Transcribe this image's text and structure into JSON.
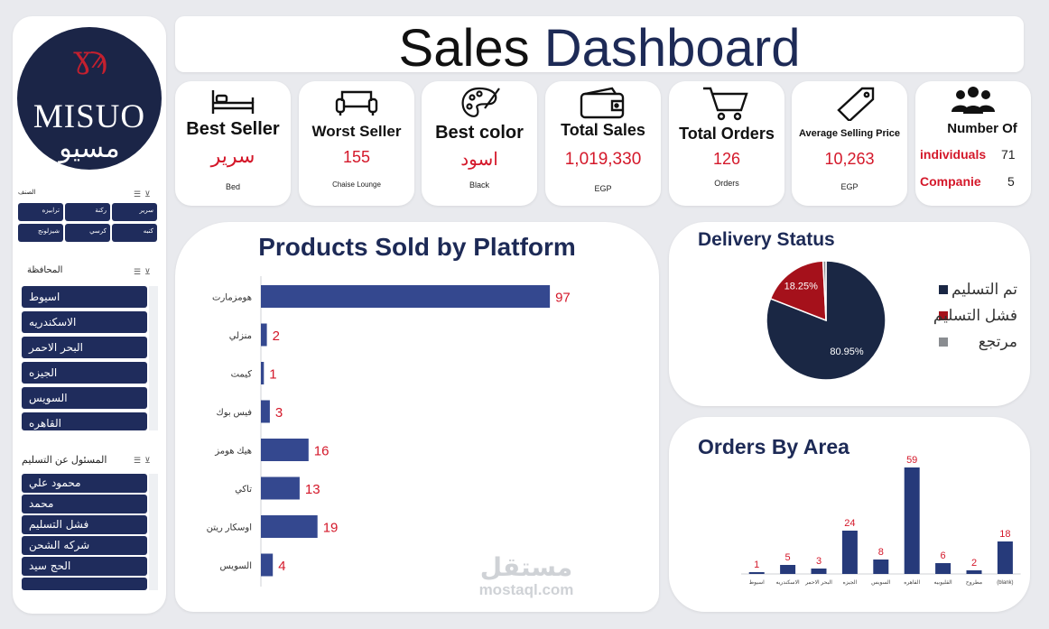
{
  "header": {
    "title_part1": "Sales",
    "title_part2": "Dashboard"
  },
  "logo": {
    "ornament": "ɣϡ",
    "brand": "MISUO",
    "arabic": "مسيو"
  },
  "slicers": {
    "category": {
      "title": "الصنف",
      "items": [
        "سرير",
        "ركنة",
        "ترابيزه",
        "كنبه",
        "كرسي",
        "شيزلونج"
      ]
    },
    "governorate": {
      "title": "المحافظة",
      "items": [
        "اسيوط",
        "الاسكندريه",
        "البحر الاحمر",
        "الجيزه",
        "السويس",
        "القاهره"
      ]
    },
    "delivery_agent": {
      "title": "المسئول عن التسليم",
      "items": [
        "محمود علي",
        "محمد",
        "فشل التسليم",
        "شركه الشحن",
        "الحج سيد"
      ]
    }
  },
  "kpis": {
    "best_seller": {
      "label": "Best Seller",
      "value": "سرير",
      "sub": "Bed",
      "icon": "bed-icon"
    },
    "worst_seller": {
      "label": "Worst Seller",
      "value": "155",
      "sub": "Chaise Lounge",
      "icon": "sofa-icon"
    },
    "best_color": {
      "label": "Best color",
      "value": "اسود",
      "sub": "Black",
      "icon": "palette-icon"
    },
    "total_sales": {
      "label": "Total Sales",
      "value": "1,019,330",
      "sub": "EGP",
      "icon": "wallet-icon"
    },
    "total_orders": {
      "label": "Total Orders",
      "value": "126",
      "sub": "Orders",
      "icon": "cart-icon"
    },
    "avg_price": {
      "label": "Average Selling Price",
      "value": "10,263",
      "sub": "EGP",
      "icon": "tag-icon"
    },
    "customers": {
      "label": "Number Of",
      "individuals_label": "individuals",
      "individuals_value": "71",
      "companies_label": "Companie",
      "companies_value": "5",
      "icon": "people-icon"
    }
  },
  "colors": {
    "navy": "#1f2c5c",
    "bar": "#34488f",
    "red": "#d4182a",
    "darkred": "#a5111b",
    "gray": "#8a8d91"
  },
  "chart_data": [
    {
      "type": "bar",
      "orientation": "horizontal",
      "title": "Products Sold by Platform",
      "categories": [
        "هومزمارت",
        "منزلي",
        "كيمت",
        "فيس بوك",
        "هيك هومز",
        "تاكي",
        "اوسكار ريتن",
        "السويس"
      ],
      "values": [
        97,
        2,
        1,
        3,
        16,
        13,
        19,
        4
      ],
      "xlim": [
        0,
        100
      ],
      "data_labels": true
    },
    {
      "type": "pie",
      "title": "Delivery Status",
      "labels": [
        "تم التسليم",
        "فشل التسليم",
        "مرتجع"
      ],
      "values": [
        80.95,
        18.25,
        0.8
      ],
      "display_labels": [
        "80.95%",
        "18.25%",
        ""
      ],
      "colors": [
        "#1a2744",
        "#a5111b",
        "#8a8d91"
      ],
      "legend_position": "right"
    },
    {
      "type": "bar",
      "title": "Orders By Area",
      "categories": [
        "اسيوط",
        "الاسكندريه",
        "البحر الاحمر",
        "الجيزه",
        "السويس",
        "القاهره",
        "القليوبيه",
        "مطروح",
        "(blank)"
      ],
      "values": [
        1,
        5,
        3,
        24,
        8,
        59,
        6,
        2,
        18
      ],
      "ylim": [
        0,
        60
      ],
      "data_labels": true
    }
  ],
  "watermark": {
    "arabic": "مستقل",
    "latin": "mostaql.com"
  }
}
